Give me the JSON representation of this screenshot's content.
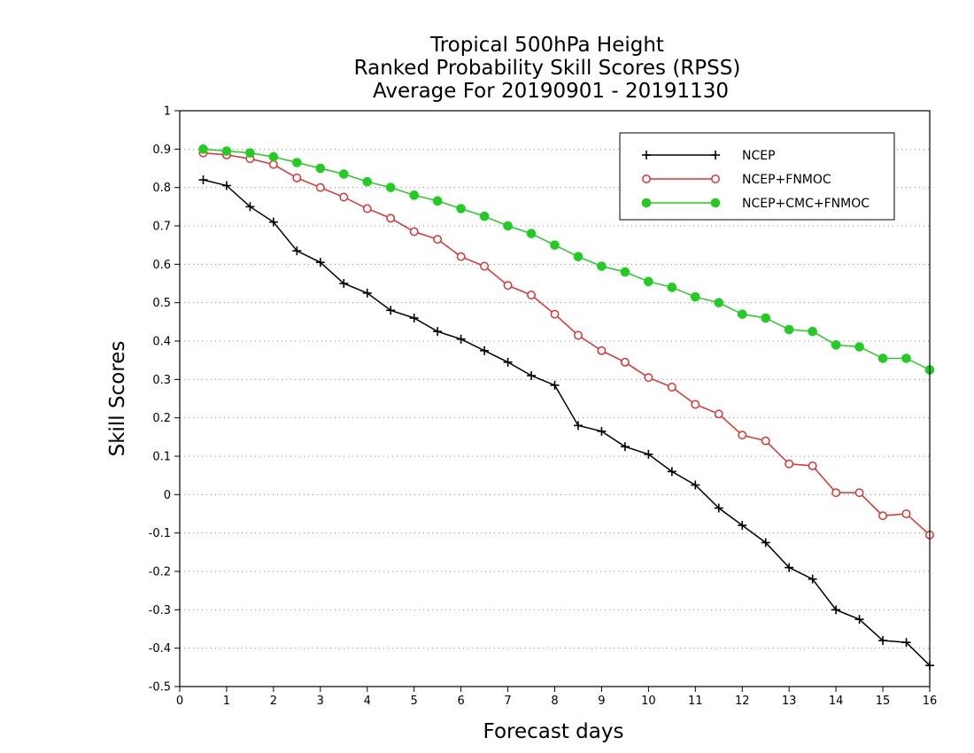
{
  "chart_data": {
    "type": "line",
    "title": [
      "Tropical 500hPa Height",
      "Ranked Probability Skill Scores (RPSS)",
      "Average For 20190901 - 20191130"
    ],
    "xlabel": "Forecast days",
    "ylabel": "Skill Scores",
    "xlim": [
      0,
      16
    ],
    "ylim": [
      -0.5,
      1
    ],
    "x_ticks": [
      "0",
      "1",
      "2",
      "3",
      "4",
      "5",
      "6",
      "7",
      "8",
      "9",
      "10",
      "11",
      "12",
      "13",
      "14",
      "15",
      "16"
    ],
    "y_ticks": [
      "-0.5",
      "-0.4",
      "-0.3",
      "-0.2",
      "-0.1",
      "0",
      "0.1",
      "0.2",
      "0.3",
      "0.4",
      "0.5",
      "0.6",
      "0.7",
      "0.8",
      "0.9",
      "1"
    ],
    "grid": "horizontal dotted",
    "legend_position": "top-right",
    "x": [
      0.5,
      1,
      1.5,
      2,
      2.5,
      3,
      3.5,
      4,
      4.5,
      5,
      5.5,
      6,
      6.5,
      7,
      7.5,
      8,
      8.5,
      9,
      9.5,
      10,
      10.5,
      11,
      11.5,
      12,
      12.5,
      13,
      13.5,
      14,
      14.5,
      15,
      15.5,
      16
    ],
    "series": [
      {
        "name": "NCEP",
        "color": "#000000",
        "marker": "plus",
        "values": [
          0.82,
          0.805,
          0.75,
          0.71,
          0.635,
          0.605,
          0.55,
          0.525,
          0.48,
          0.46,
          0.425,
          0.405,
          0.375,
          0.345,
          0.31,
          0.285,
          0.18,
          0.165,
          0.125,
          0.105,
          0.06,
          0.025,
          -0.035,
          -0.08,
          -0.125,
          -0.19,
          -0.22,
          -0.3,
          -0.325,
          -0.38,
          -0.385,
          -0.445
        ]
      },
      {
        "name": "NCEP+FNMOC",
        "color": "#e03030",
        "marker": "open-circle",
        "values": [
          0.89,
          0.885,
          0.875,
          0.86,
          0.825,
          0.8,
          0.775,
          0.745,
          0.72,
          0.685,
          0.665,
          0.62,
          0.595,
          0.545,
          0.52,
          0.47,
          0.415,
          0.375,
          0.345,
          0.305,
          0.28,
          0.235,
          0.21,
          0.155,
          0.14,
          0.08,
          0.075,
          0.005,
          0.005,
          -0.055,
          -0.05,
          -0.105
        ]
      },
      {
        "name": "NCEP+CMC+FNMOC",
        "color": "#22cc22",
        "marker": "filled-circle",
        "values": [
          0.9,
          0.895,
          0.89,
          0.88,
          0.865,
          0.85,
          0.835,
          0.815,
          0.8,
          0.78,
          0.765,
          0.745,
          0.725,
          0.7,
          0.68,
          0.65,
          0.62,
          0.595,
          0.58,
          0.555,
          0.54,
          0.515,
          0.5,
          0.47,
          0.46,
          0.43,
          0.425,
          0.39,
          0.385,
          0.355,
          0.355,
          0.325
        ]
      }
    ]
  }
}
